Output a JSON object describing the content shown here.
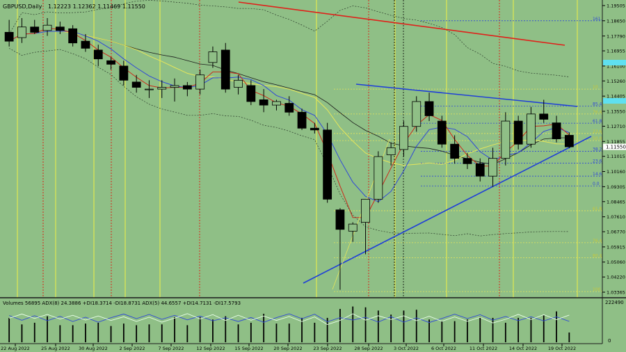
{
  "header": {
    "symbol": "GBPUSD,Daily",
    "ohlc": "1.12223 1.12362 1.11469 1.11550"
  },
  "indicator_header": "Volumes 56895  ADX(8) 24.3886 +DI18.3714 -DI18.8731  ADX(5) 44.6557 +DI14.7131 -DI17.5793",
  "colors": {
    "background": "#8fbf86",
    "price_panel_bg": "#8fbf86",
    "bull_candle": "#8fbf86",
    "bear_candle": "#000000",
    "trendline": "#1f3fd8",
    "red_trendline": "#e0201a",
    "ma_red": "#cc2a1a",
    "ma_blue": "#2f47d8",
    "ma_yellow": "#e6e65a",
    "ma_black": "#1a1a1a",
    "vline_yellow": "#f2f247",
    "vline_red": "#d8261a",
    "fib_blue": "#2f47d8",
    "fib_yellow": "#e6e65a",
    "price_tag": "#ffffff",
    "highlight_cyan": "#5fe0f0"
  },
  "chart_data": {
    "type": "candlestick",
    "price_ticks": [
      "1.19505",
      "1.18650",
      "1.17790",
      "1.16955",
      "1.16100",
      "1.15260",
      "1.14405",
      "1.13550",
      "1.12710",
      "1.11855",
      "1.11015",
      "1.10160",
      "1.09305",
      "1.08465",
      "1.07610",
      "1.06770",
      "1.05915",
      "1.05060",
      "1.04220",
      "1.03365"
    ],
    "current_price": "1.11550",
    "date_ticks": [
      "22 Aug 2022",
      "25 Aug 2022",
      "30 Aug 2022",
      "2 Sep 2022",
      "7 Sep 2022",
      "12 Sep 2022",
      "15 Sep 2022",
      "20 Sep 2022",
      "23 Sep 2022",
      "28 Sep 2022",
      "3 Oct 2022",
      "6 Oct 2022",
      "11 Oct 2022",
      "14 Oct 2022",
      "19 Oct 2022"
    ],
    "volume_tick_top": "222490",
    "volume_tick_bottom": "0",
    "candles": [
      {
        "o": 1.18,
        "h": 1.187,
        "l": 1.172,
        "c": 1.175
      },
      {
        "o": 1.177,
        "h": 1.188,
        "l": 1.174,
        "c": 1.183
      },
      {
        "o": 1.183,
        "h": 1.187,
        "l": 1.179,
        "c": 1.18
      },
      {
        "o": 1.181,
        "h": 1.188,
        "l": 1.178,
        "c": 1.184
      },
      {
        "o": 1.183,
        "h": 1.186,
        "l": 1.179,
        "c": 1.181
      },
      {
        "o": 1.182,
        "h": 1.184,
        "l": 1.172,
        "c": 1.174
      },
      {
        "o": 1.175,
        "h": 1.179,
        "l": 1.169,
        "c": 1.171
      },
      {
        "o": 1.17,
        "h": 1.173,
        "l": 1.161,
        "c": 1.165
      },
      {
        "o": 1.164,
        "h": 1.166,
        "l": 1.159,
        "c": 1.162
      },
      {
        "o": 1.161,
        "h": 1.164,
        "l": 1.15,
        "c": 1.153
      },
      {
        "o": 1.152,
        "h": 1.156,
        "l": 1.146,
        "c": 1.149
      },
      {
        "o": 1.148,
        "h": 1.153,
        "l": 1.143,
        "c": 1.148
      },
      {
        "o": 1.148,
        "h": 1.153,
        "l": 1.143,
        "c": 1.149
      },
      {
        "o": 1.149,
        "h": 1.154,
        "l": 1.141,
        "c": 1.15
      },
      {
        "o": 1.15,
        "h": 1.152,
        "l": 1.144,
        "c": 1.148
      },
      {
        "o": 1.148,
        "h": 1.159,
        "l": 1.145,
        "c": 1.156
      },
      {
        "o": 1.163,
        "h": 1.172,
        "l": 1.16,
        "c": 1.169
      },
      {
        "o": 1.17,
        "h": 1.174,
        "l": 1.146,
        "c": 1.148
      },
      {
        "o": 1.149,
        "h": 1.156,
        "l": 1.145,
        "c": 1.153
      },
      {
        "o": 1.15,
        "h": 1.153,
        "l": 1.139,
        "c": 1.141
      },
      {
        "o": 1.142,
        "h": 1.148,
        "l": 1.135,
        "c": 1.139
      },
      {
        "o": 1.139,
        "h": 1.142,
        "l": 1.136,
        "c": 1.141
      },
      {
        "o": 1.14,
        "h": 1.144,
        "l": 1.133,
        "c": 1.135
      },
      {
        "o": 1.135,
        "h": 1.137,
        "l": 1.125,
        "c": 1.126
      },
      {
        "o": 1.126,
        "h": 1.129,
        "l": 1.123,
        "c": 1.125
      },
      {
        "o": 1.125,
        "h": 1.129,
        "l": 1.084,
        "c": 1.086
      },
      {
        "o": 1.08,
        "h": 1.081,
        "l": 1.035,
        "c": 1.069
      },
      {
        "o": 1.068,
        "h": 1.073,
        "l": 1.062,
        "c": 1.072
      },
      {
        "o": 1.073,
        "h": 1.086,
        "l": 1.055,
        "c": 1.086
      },
      {
        "o": 1.086,
        "h": 1.113,
        "l": 1.084,
        "c": 1.11
      },
      {
        "o": 1.111,
        "h": 1.118,
        "l": 1.105,
        "c": 1.115
      },
      {
        "o": 1.114,
        "h": 1.13,
        "l": 1.11,
        "c": 1.127
      },
      {
        "o": 1.127,
        "h": 1.144,
        "l": 1.124,
        "c": 1.141
      },
      {
        "o": 1.141,
        "h": 1.146,
        "l": 1.13,
        "c": 1.133
      },
      {
        "o": 1.13,
        "h": 1.133,
        "l": 1.115,
        "c": 1.117
      },
      {
        "o": 1.117,
        "h": 1.122,
        "l": 1.106,
        "c": 1.109
      },
      {
        "o": 1.109,
        "h": 1.112,
        "l": 1.103,
        "c": 1.106
      },
      {
        "o": 1.106,
        "h": 1.109,
        "l": 1.096,
        "c": 1.099
      },
      {
        "o": 1.099,
        "h": 1.115,
        "l": 1.093,
        "c": 1.109
      },
      {
        "o": 1.109,
        "h": 1.135,
        "l": 1.105,
        "c": 1.13
      },
      {
        "o": 1.13,
        "h": 1.133,
        "l": 1.114,
        "c": 1.117
      },
      {
        "o": 1.117,
        "h": 1.138,
        "l": 1.115,
        "c": 1.134
      },
      {
        "o": 1.134,
        "h": 1.142,
        "l": 1.129,
        "c": 1.131
      },
      {
        "o": 1.129,
        "h": 1.133,
        "l": 1.118,
        "c": 1.12
      },
      {
        "o": 1.122,
        "h": 1.1236,
        "l": 1.1147,
        "c": 1.1155
      }
    ],
    "volumes": [
      150000,
      110000,
      120000,
      160000,
      105000,
      105000,
      115000,
      120000,
      100000,
      115000,
      105000,
      110000,
      110000,
      155000,
      105000,
      155000,
      140000,
      160000,
      110000,
      120000,
      175000,
      115000,
      115000,
      150000,
      120000,
      150000,
      205000,
      220000,
      215000,
      195000,
      170000,
      195000,
      200000,
      140000,
      130000,
      130000,
      140000,
      155000,
      150000,
      120000,
      150000,
      150000,
      165000,
      190000,
      60000
    ],
    "fib_levels_blue": [
      {
        "label": "161.8",
        "price": 1.1865
      },
      {
        "label": "85.4",
        "price": 1.1385
      },
      {
        "label": "61.8",
        "price": 1.1288
      },
      {
        "label": "38.2",
        "price": 1.113
      },
      {
        "label": "23.6",
        "price": 1.1063
      },
      {
        "label": "14.6",
        "price": 1.099
      },
      {
        "label": "0.0",
        "price": 1.0935
      }
    ],
    "fib_levels_yellow": [
      {
        "label": "10",
        "price": 1.148
      },
      {
        "label": "76.4",
        "price": 1.134
      },
      {
        "label": "23.6",
        "price": 1.123
      },
      {
        "label": "50.0",
        "price": 1.119
      },
      {
        "label": "61.8",
        "price": 1.0795
      },
      {
        "label": "76.4",
        "price": 1.0615
      },
      {
        "label": "80.4",
        "price": 1.053
      },
      {
        "label": "100.0",
        "price": 1.034
      }
    ]
  }
}
